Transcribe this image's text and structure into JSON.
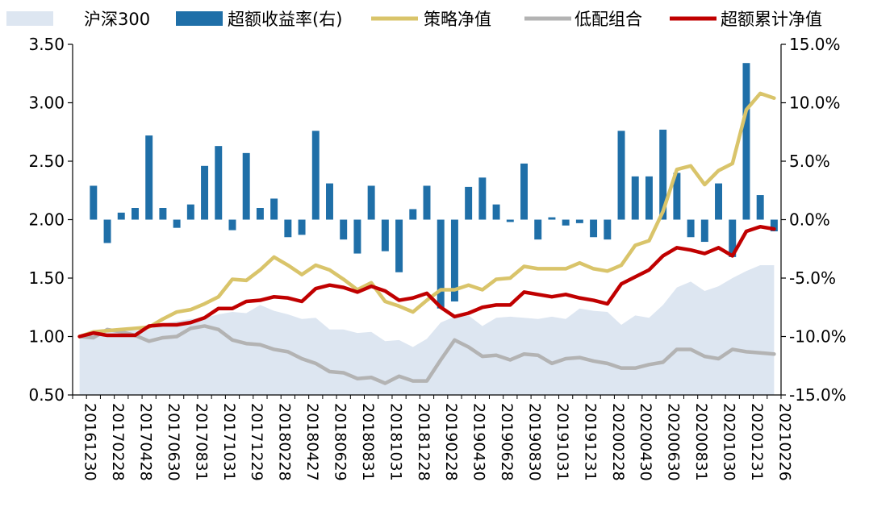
{
  "chart_data": {
    "type": "combo",
    "legend": {
      "placement": "top",
      "items": [
        {
          "key": "csi300",
          "label": "沪深300",
          "style": "area",
          "color": "#dde6f1"
        },
        {
          "key": "excess",
          "label": "超额收益率(右)",
          "style": "bar",
          "color": "#1f6fa8"
        },
        {
          "key": "strategy",
          "label": "策略净值",
          "style": "line",
          "color": "#d9c46a"
        },
        {
          "key": "low",
          "label": "低配组合",
          "style": "line",
          "color": "#b3b3b3"
        },
        {
          "key": "cum_excess",
          "label": "超额累计净值",
          "style": "line",
          "color": "#c00000"
        }
      ]
    },
    "y_left": {
      "min": 0.5,
      "max": 3.5,
      "ticks": [
        "0.50",
        "1.00",
        "1.50",
        "2.00",
        "2.50",
        "3.00",
        "3.50"
      ]
    },
    "y_right": {
      "min": -15,
      "max": 15,
      "ticks": [
        "-15.0%",
        "-10.0%",
        "-5.0%",
        "0.0%",
        "5.0%",
        "10.0%",
        "15.0%"
      ]
    },
    "x_tick_labels": [
      "20161230",
      "20170228",
      "20170428",
      "20170630",
      "20170831",
      "20171031",
      "20171229",
      "20180228",
      "20180427",
      "20180629",
      "20180831",
      "20181031",
      "20181228",
      "20190228",
      "20190430",
      "20190628",
      "20190830",
      "20191031",
      "20191231",
      "20200228",
      "20200430",
      "20200630",
      "20200831",
      "20201030",
      "20201231",
      "20210226"
    ],
    "x": [
      "20161230",
      "20170126",
      "20170228",
      "20170331",
      "20170428",
      "20170531",
      "20170630",
      "20170731",
      "20170831",
      "20170929",
      "20171031",
      "20171130",
      "20171229",
      "20180131",
      "20180228",
      "20180330",
      "20180427",
      "20180531",
      "20180629",
      "20180731",
      "20180831",
      "20180928",
      "20181031",
      "20181130",
      "20181228",
      "20190131",
      "20190228",
      "20190329",
      "20190430",
      "20190531",
      "20190628",
      "20190731",
      "20190830",
      "20190930",
      "20191031",
      "20191129",
      "20191231",
      "20200123",
      "20200228",
      "20200331",
      "20200430",
      "20200529",
      "20200630",
      "20200731",
      "20200831",
      "20200930",
      "20201030",
      "20201130",
      "20201231",
      "20210129",
      "20210226"
    ],
    "series": [
      {
        "key": "csi300",
        "values": [
          1.0,
          1.02,
          1.05,
          1.06,
          1.05,
          1.06,
          1.11,
          1.13,
          1.15,
          1.16,
          1.19,
          1.21,
          1.2,
          1.27,
          1.22,
          1.19,
          1.15,
          1.16,
          1.06,
          1.06,
          1.03,
          1.04,
          0.96,
          0.97,
          0.91,
          0.98,
          1.12,
          1.17,
          1.18,
          1.09,
          1.16,
          1.17,
          1.16,
          1.15,
          1.17,
          1.15,
          1.24,
          1.22,
          1.21,
          1.1,
          1.18,
          1.16,
          1.27,
          1.42,
          1.47,
          1.39,
          1.43,
          1.5,
          1.56,
          1.61,
          1.61
        ]
      },
      {
        "key": "excess",
        "values": [
          null,
          2.9,
          -2.0,
          0.6,
          1.0,
          7.2,
          1.0,
          -0.7,
          1.3,
          4.6,
          6.3,
          -0.9,
          5.7,
          1.0,
          1.8,
          -1.5,
          -1.3,
          7.6,
          3.1,
          -1.7,
          -2.9,
          2.9,
          -2.7,
          -4.5,
          0.9,
          2.9,
          -7.6,
          -7.0,
          2.8,
          3.6,
          1.3,
          -0.2,
          4.8,
          -1.7,
          0.2,
          -0.5,
          -0.3,
          -1.5,
          -1.7,
          7.6,
          3.7,
          3.7,
          7.7,
          4.0,
          -1.5,
          -1.9,
          3.1,
          -3.2,
          13.4,
          2.1,
          -1.0
        ]
      },
      {
        "key": "strategy",
        "values": [
          1.0,
          1.04,
          1.05,
          1.06,
          1.07,
          1.08,
          1.15,
          1.21,
          1.23,
          1.28,
          1.34,
          1.49,
          1.48,
          1.57,
          1.68,
          1.61,
          1.53,
          1.61,
          1.57,
          1.49,
          1.4,
          1.46,
          1.3,
          1.26,
          1.21,
          1.31,
          1.4,
          1.4,
          1.44,
          1.4,
          1.49,
          1.5,
          1.6,
          1.58,
          1.58,
          1.58,
          1.63,
          1.58,
          1.56,
          1.61,
          1.78,
          1.82,
          2.07,
          2.43,
          2.46,
          2.3,
          2.42,
          2.48,
          2.94,
          3.08,
          3.04
        ]
      },
      {
        "key": "low",
        "values": [
          1.0,
          0.99,
          1.06,
          1.04,
          1.01,
          0.96,
          0.99,
          1.0,
          1.07,
          1.09,
          1.06,
          0.97,
          0.94,
          0.93,
          0.89,
          0.87,
          0.81,
          0.77,
          0.7,
          0.69,
          0.64,
          0.65,
          0.6,
          0.66,
          0.62,
          0.62,
          0.8,
          0.97,
          0.91,
          0.83,
          0.84,
          0.8,
          0.85,
          0.84,
          0.77,
          0.81,
          0.82,
          0.79,
          0.77,
          0.73,
          0.73,
          0.76,
          0.78,
          0.89,
          0.89,
          0.83,
          0.81,
          0.89,
          0.87,
          0.86,
          0.85
        ]
      },
      {
        "key": "cum_excess",
        "values": [
          1.0,
          1.03,
          1.01,
          1.01,
          1.01,
          1.09,
          1.1,
          1.1,
          1.12,
          1.16,
          1.24,
          1.24,
          1.3,
          1.31,
          1.34,
          1.33,
          1.3,
          1.41,
          1.44,
          1.42,
          1.38,
          1.43,
          1.39,
          1.31,
          1.33,
          1.37,
          1.25,
          1.17,
          1.2,
          1.25,
          1.27,
          1.27,
          1.38,
          1.36,
          1.34,
          1.36,
          1.33,
          1.31,
          1.28,
          1.45,
          1.51,
          1.57,
          1.69,
          1.76,
          1.74,
          1.71,
          1.76,
          1.69,
          1.9,
          1.94,
          1.92
        ]
      }
    ]
  }
}
